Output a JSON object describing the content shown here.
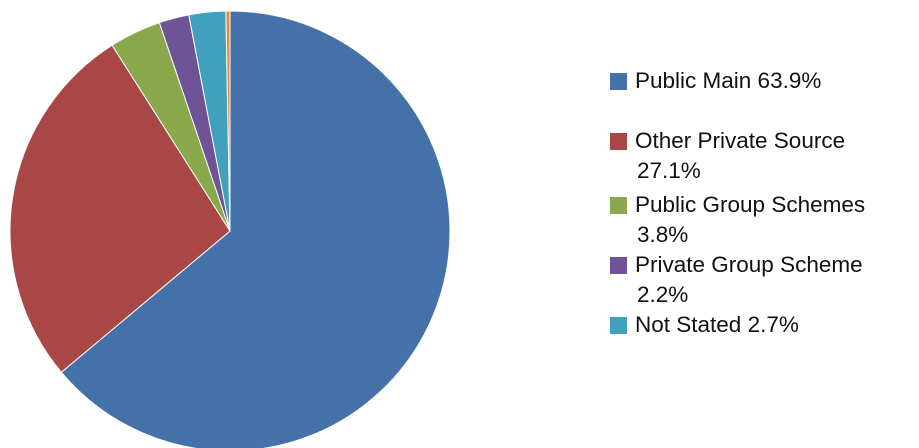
{
  "chart_data": {
    "type": "pie",
    "start_angle_deg": 90,
    "direction": "clockwise",
    "legend_position": "right",
    "slices": [
      {
        "label": "Public Main",
        "value": 63.9,
        "display": "63.9%",
        "color": "#4472A8"
      },
      {
        "label": "Other Private Source",
        "value": 27.1,
        "display": "27.1%",
        "color": "#A84746"
      },
      {
        "label": "Public Group Schemes",
        "value": 3.8,
        "display": "3.8%",
        "color": "#8AA94D"
      },
      {
        "label": "Private Group Scheme",
        "value": 2.2,
        "display": "2.2%",
        "color": "#6E5397"
      },
      {
        "label": "Not Stated",
        "value": 2.7,
        "display": "2.7%",
        "color": "#41A0BB"
      },
      {
        "label": "",
        "value": 0.3,
        "display": "",
        "color": "#E88A3A"
      }
    ]
  },
  "legend": [
    {
      "lines": [
        "Public Main 63.9%"
      ],
      "color": "#4472A8"
    },
    {
      "lines": [
        "Other Private Source",
        "27.1%"
      ],
      "color": "#A84746"
    },
    {
      "lines": [
        "Public Group Schemes",
        "3.8%"
      ],
      "color": "#8AA94D"
    },
    {
      "lines": [
        "Private Group Scheme",
        "2.2%"
      ],
      "color": "#6E5397"
    },
    {
      "lines": [
        "Not Stated 2.7%"
      ],
      "color": "#41A0BB"
    }
  ]
}
